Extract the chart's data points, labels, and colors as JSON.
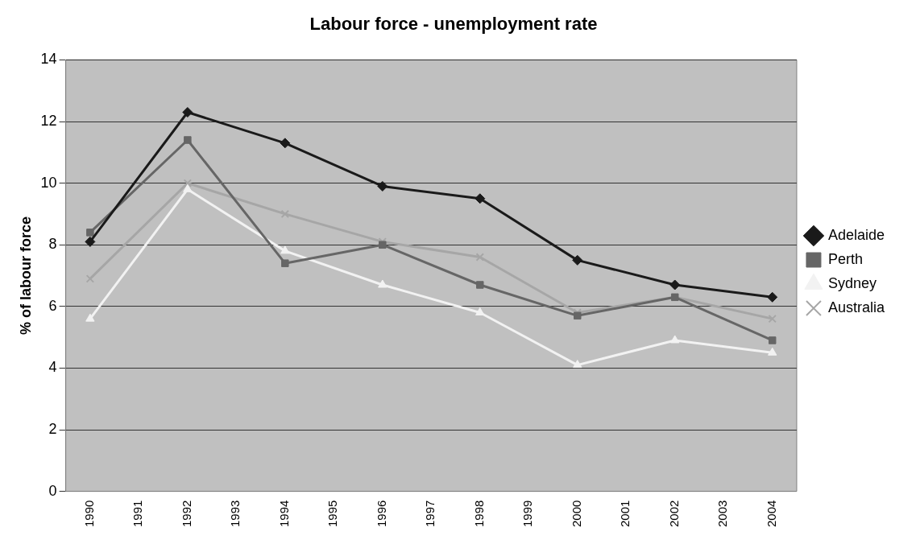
{
  "chart_data": {
    "type": "line",
    "title": "Labour force - unemployment rate",
    "ylabel": "% of labour force",
    "x": [
      1990,
      1992,
      1994,
      1996,
      1998,
      2000,
      2002,
      2004
    ],
    "xlim": [
      1989.5,
      2004.5
    ],
    "xticks": [
      1990,
      1991,
      1992,
      1993,
      1994,
      1995,
      1996,
      1997,
      1998,
      1999,
      2000,
      2001,
      2002,
      2003,
      2004
    ],
    "ylim": [
      0,
      14
    ],
    "yticks": [
      0,
      2,
      4,
      6,
      8,
      10,
      12,
      14
    ],
    "grid": "y",
    "legend": "right",
    "series": [
      {
        "name": "Adelaide",
        "color": "#1a1a1a",
        "marker": "diamond",
        "values": [
          8.1,
          12.3,
          11.3,
          9.9,
          9.5,
          7.5,
          6.7,
          6.3
        ]
      },
      {
        "name": "Perth",
        "color": "#666666",
        "marker": "square",
        "values": [
          8.4,
          11.4,
          7.4,
          8.0,
          6.7,
          5.7,
          6.3,
          4.9
        ]
      },
      {
        "name": "Sydney",
        "color": "#f2f2f2",
        "marker": "triangle",
        "values": [
          5.6,
          9.8,
          7.8,
          6.7,
          5.8,
          4.1,
          4.9,
          4.5
        ]
      },
      {
        "name": "Australia",
        "color": "#a6a6a6",
        "marker": "cross",
        "values": [
          6.9,
          10.0,
          9.0,
          8.1,
          7.6,
          5.8,
          6.3,
          5.6
        ]
      }
    ]
  }
}
